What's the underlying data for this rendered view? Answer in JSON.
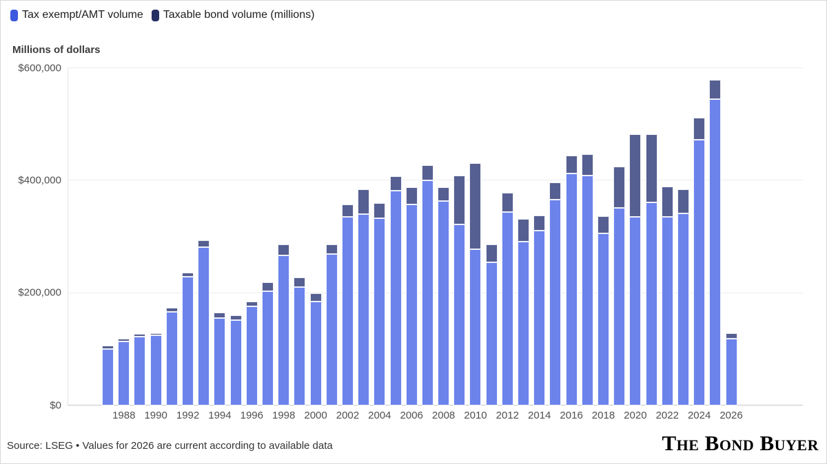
{
  "legend": {
    "items": [
      {
        "label": "Tax exempt/AMT volume",
        "swatch_color": "#3b58de"
      },
      {
        "label": "Taxable bond volume (millions)",
        "swatch_color": "#252f63"
      }
    ]
  },
  "footer": {
    "source": "Source: LSEG • Values for 2026 are current according to available data",
    "logo": "The Bond Buyer"
  },
  "chart_data": {
    "type": "bar",
    "stacked": true,
    "title": "Millions of dollars",
    "xlabel": "",
    "ylabel": "Millions of dollars",
    "ylim": [
      0,
      600000
    ],
    "grid": "horizontal",
    "legend_position": "top-left",
    "x": [
      1987,
      1988,
      1989,
      1990,
      1991,
      1992,
      1993,
      1994,
      1995,
      1996,
      1997,
      1998,
      1999,
      2000,
      2001,
      2002,
      2003,
      2004,
      2005,
      2006,
      2007,
      2008,
      2009,
      2010,
      2011,
      2012,
      2013,
      2014,
      2015,
      2016,
      2017,
      2018,
      2019,
      2020,
      2021,
      2022,
      2023,
      2024,
      2025,
      2026
    ],
    "xtick_labels": [
      "1988",
      "1990",
      "1992",
      "1994",
      "1996",
      "1998",
      "2000",
      "2002",
      "2004",
      "2006",
      "2008",
      "2010",
      "2012",
      "2014",
      "2016",
      "2018",
      "2020",
      "2022",
      "2024",
      "2026"
    ],
    "yticks": [
      {
        "value": 0,
        "label": "$0"
      },
      {
        "value": 200000,
        "label": "$200,000"
      },
      {
        "value": 400000,
        "label": "$400,000"
      },
      {
        "value": 600000,
        "label": "$600,000"
      }
    ],
    "series": [
      {
        "name": "Tax exempt/AMT volume",
        "color": "#6c83ec",
        "values": [
          100000,
          113500,
          122000,
          124500,
          166500,
          229000,
          282000,
          155500,
          151500,
          176000,
          203500,
          267500,
          210500,
          184500,
          270000,
          335000,
          340000,
          333000,
          382000,
          357500,
          400000,
          363500,
          321500,
          278000,
          254500,
          344500,
          292000,
          310500,
          366500,
          412500,
          408500,
          306500,
          352000,
          335000,
          361500,
          335000,
          342000,
          473000,
          545000,
          119000
        ]
      },
      {
        "name": "Taxable bond volume (millions)",
        "color": "#565f91",
        "values": [
          6000,
          4800,
          5300,
          4000,
          6800,
          7000,
          11500,
          9500,
          9000,
          9000,
          16000,
          18500,
          17000,
          15000,
          16000,
          22500,
          44000,
          26500,
          25500,
          30500,
          27500,
          24500,
          87000,
          153000,
          31500,
          34000,
          40000,
          28000,
          30000,
          31500,
          39000,
          30500,
          72500,
          147000,
          120500,
          54500,
          42000,
          38500,
          34500,
          10000
        ]
      }
    ]
  }
}
